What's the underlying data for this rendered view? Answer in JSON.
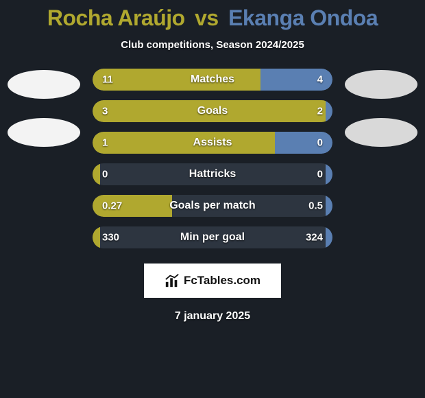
{
  "title": {
    "player1": "Rocha Araújo",
    "vs": "vs",
    "player2": "Ekanga Ondoa",
    "player1_color": "#b0a82f",
    "player2_color": "#5a7fb2"
  },
  "subtitle": "Club competitions, Season 2024/2025",
  "background_color": "#1a1f26",
  "bar_track_color": "#2d3540",
  "avatars": {
    "left1_color": "#f3f3f3",
    "left2_color": "#f3f3f3",
    "right1_color": "#d9d9d9",
    "right2_color": "#d9d9d9"
  },
  "stats": [
    {
      "label": "Matches",
      "val_left": "11",
      "val_right": "4",
      "left_pct": 70,
      "right_pct": 30,
      "left_color": "#b0a82f",
      "right_color": "#5a7fb2"
    },
    {
      "label": "Goals",
      "val_left": "3",
      "val_right": "2",
      "left_pct": 97,
      "right_pct": 3,
      "left_color": "#b0a82f",
      "right_color": "#5a7fb2"
    },
    {
      "label": "Assists",
      "val_left": "1",
      "val_right": "0",
      "left_pct": 76,
      "right_pct": 24,
      "left_color": "#b0a82f",
      "right_color": "#5a7fb2"
    },
    {
      "label": "Hattricks",
      "val_left": "0",
      "val_right": "0",
      "left_pct": 3,
      "right_pct": 3,
      "left_color": "#b0a82f",
      "right_color": "#5a7fb2"
    },
    {
      "label": "Goals per match",
      "val_left": "0.27",
      "val_right": "0.5",
      "left_pct": 33,
      "right_pct": 3,
      "left_color": "#b0a82f",
      "right_color": "#5a7fb2"
    },
    {
      "label": "Min per goal",
      "val_left": "330",
      "val_right": "324",
      "left_pct": 3,
      "right_pct": 3,
      "left_color": "#b0a82f",
      "right_color": "#5a7fb2"
    }
  ],
  "brand": {
    "text": "FcTables.com",
    "icon_name": "chart-icon",
    "bg_color": "#ffffff",
    "text_color": "#111111"
  },
  "date": "7 january 2025",
  "typography": {
    "title_fontsize": 32,
    "subtitle_fontsize": 15,
    "bar_label_fontsize": 16,
    "bar_value_fontsize": 15,
    "brand_fontsize": 17,
    "date_fontsize": 16
  }
}
